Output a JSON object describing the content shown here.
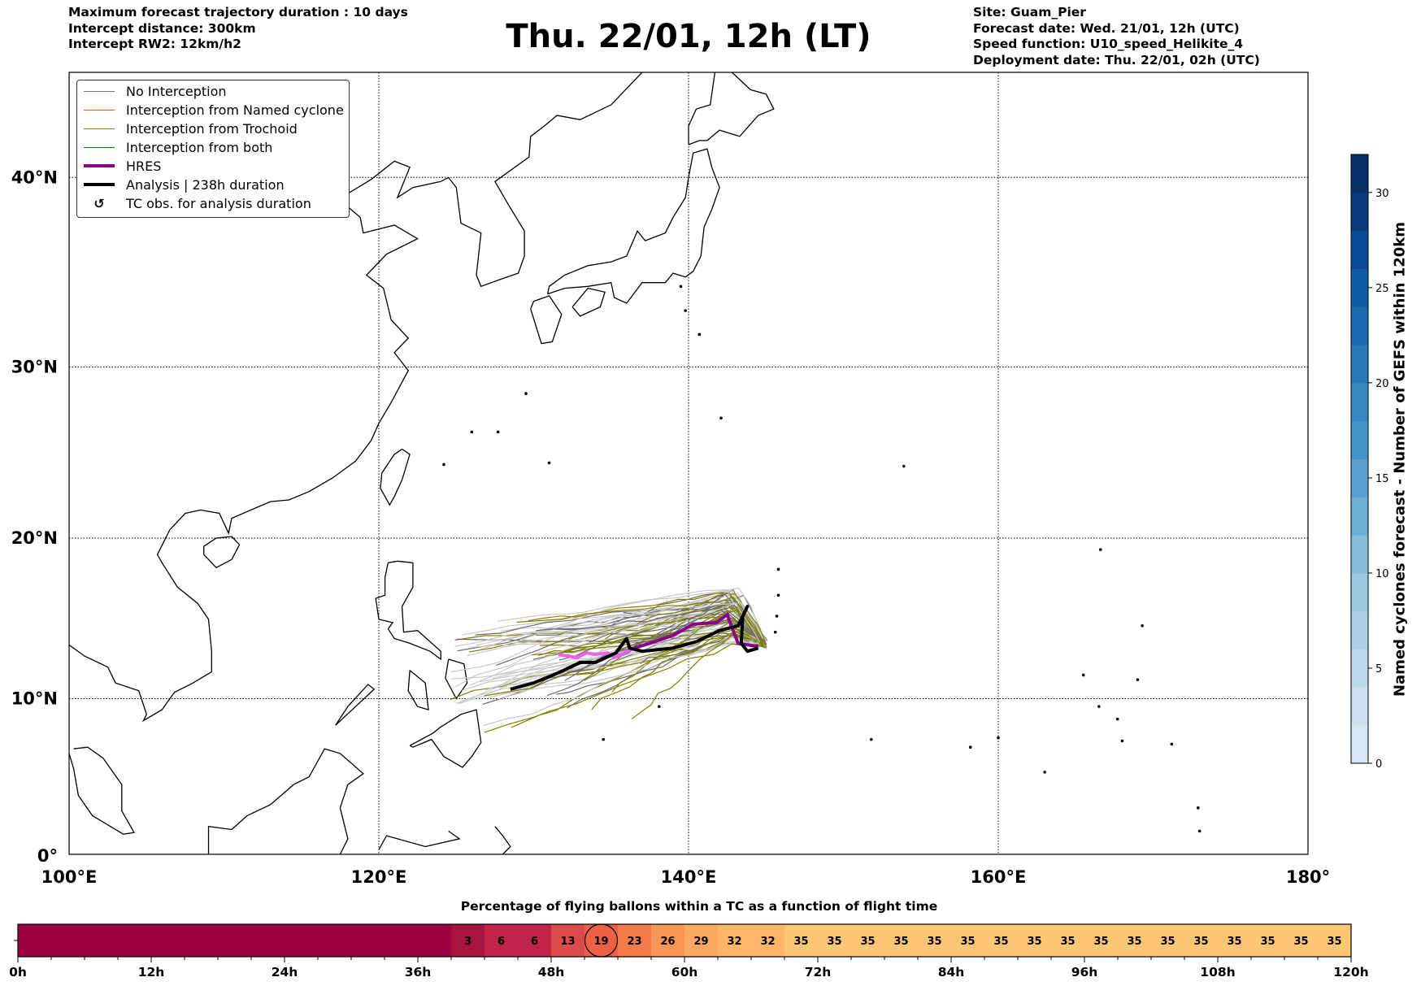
{
  "header": {
    "left": [
      "Maximum forecast trajectory duration : 10 days",
      "Intercept distance: 300km",
      "Intercept RW2: 12km/h2"
    ],
    "title": "Thu. 22/01, 12h (LT)",
    "right": [
      "Site: Guam_Pier",
      "Forecast date: Wed. 21/01, 12h (UTC)",
      "Speed function: U10_speed_Helikite_4",
      "Deployment date: Thu. 22/01, 02h (UTC)"
    ]
  },
  "legend": [
    {
      "label": "No Interception",
      "color": "#707070",
      "width": 1
    },
    {
      "label": "Interception from Named cyclone",
      "color": "#ff5500",
      "width": 1
    },
    {
      "label": "Interception from Trochoid",
      "color": "#808000",
      "width": 1
    },
    {
      "label": "Interception from both",
      "color": "#008000",
      "width": 1
    },
    {
      "label": "HRES",
      "color": "#8b008b",
      "width": 4
    },
    {
      "label": "Analysis | 238h duration",
      "color": "#000000",
      "width": 4
    },
    {
      "label": "TC obs. for analysis duration",
      "icon": "↺"
    }
  ],
  "chart_data": [
    {
      "type": "map",
      "title": "Thu. 22/01, 12h (LT)",
      "x_ticks": [
        "100°E",
        "120°E",
        "140°E",
        "160°E",
        "180°"
      ],
      "x_tick_values": [
        100,
        120,
        140,
        160,
        180
      ],
      "y_ticks": [
        "0°",
        "10°N",
        "20°N",
        "30°N",
        "40°N"
      ],
      "y_tick_values": [
        0,
        10,
        20,
        30,
        40
      ],
      "xlim": [
        100,
        180
      ],
      "ylim": [
        0,
        44.8
      ],
      "grid": true,
      "legend_position": "top-left",
      "site": {
        "name": "Guam_Pier",
        "lon": 144.8,
        "lat": 13.4
      }
    },
    {
      "type": "colorbar",
      "label": "Named cyclones forecast - Number of GEFS within 120km",
      "range": [
        0,
        32
      ],
      "ticks": [
        "0",
        "5",
        "10",
        "15",
        "20",
        "25",
        "30"
      ],
      "tick_values": [
        0,
        5,
        10,
        15,
        20,
        25,
        30
      ],
      "bins": 16,
      "colors": [
        "#d6e6f4",
        "#cde0f2",
        "#bed8ec",
        "#acd0e6",
        "#9cc9e2",
        "#85bcdc",
        "#6aaed6",
        "#58a1ce",
        "#4594c7",
        "#3887c0",
        "#2979b9",
        "#1b6aaf",
        "#0f5ca4",
        "#084c94",
        "#083c7f",
        "#08306b"
      ]
    },
    {
      "type": "heatmap",
      "title": "Percentage of flying ballons within a TC as a function of flight time",
      "x_range_hours": [
        0,
        120
      ],
      "bin_hours": 3,
      "x_ticks": [
        "0h",
        "12h",
        "24h",
        "36h",
        "48h",
        "60h",
        "72h",
        "84h",
        "96h",
        "108h",
        "120h"
      ],
      "x_tick_values": [
        0,
        12,
        24,
        36,
        48,
        60,
        72,
        84,
        96,
        108,
        120
      ],
      "values": [
        null,
        null,
        null,
        null,
        null,
        null,
        null,
        null,
        null,
        null,
        null,
        null,
        null,
        3,
        6,
        6,
        13,
        19,
        23,
        26,
        29,
        32,
        32,
        35,
        35,
        35,
        35,
        35,
        35,
        35,
        35,
        35,
        35,
        35,
        35,
        35,
        35,
        35,
        35,
        35
      ],
      "highlighted_hour_bin": 51,
      "empty_color": "#9e0142"
    }
  ]
}
